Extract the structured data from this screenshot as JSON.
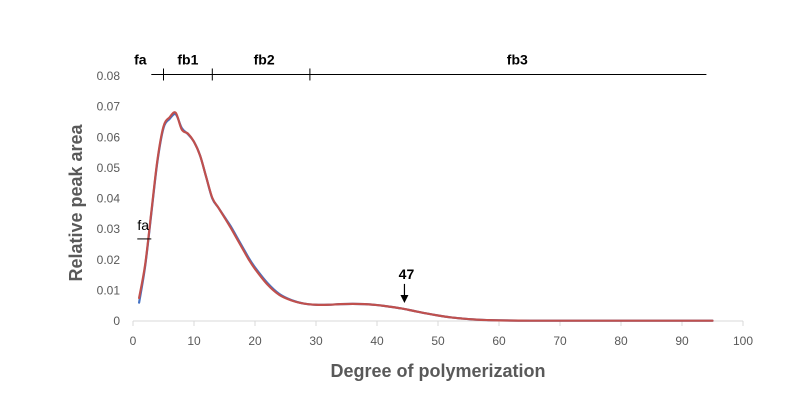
{
  "chart_data": {
    "type": "line",
    "title": "",
    "xlabel": "Degree of polymerization",
    "ylabel": "Relative peak area",
    "xlim": [
      0,
      100
    ],
    "ylim": [
      0,
      0.08
    ],
    "grid": false,
    "x_ticks": [
      0,
      10,
      20,
      30,
      40,
      50,
      60,
      70,
      80,
      90,
      100
    ],
    "y_ticks": [
      0,
      0.01,
      0.02,
      0.03,
      0.04,
      0.05,
      0.06,
      0.07,
      0.08
    ],
    "x_tick_labels": [
      "0",
      "10",
      "20",
      "30",
      "40",
      "50",
      "60",
      "70",
      "80",
      "90",
      "100"
    ],
    "y_tick_labels": [
      "0",
      "0.01",
      "0.02",
      "0.03",
      "0.04",
      "0.05",
      "0.06",
      "0.07",
      "0.08"
    ],
    "series": [
      {
        "color": "#4472C4",
        "x": [
          1,
          2,
          3,
          4,
          5,
          6,
          7,
          8,
          9,
          10,
          11,
          12,
          13,
          14,
          15,
          16,
          17,
          18,
          19,
          20,
          22,
          24,
          26,
          28,
          30,
          32,
          34,
          36,
          38,
          40,
          42,
          44,
          46,
          48,
          50,
          52,
          54,
          56,
          58,
          60,
          65,
          70,
          75,
          80,
          85,
          90,
          95
        ],
        "y": [
          0.006,
          0.018,
          0.035,
          0.052,
          0.063,
          0.066,
          0.0675,
          0.063,
          0.061,
          0.0585,
          0.054,
          0.047,
          0.04,
          0.037,
          0.034,
          0.031,
          0.0275,
          0.024,
          0.0205,
          0.0175,
          0.0125,
          0.0088,
          0.0068,
          0.0057,
          0.0053,
          0.0053,
          0.0055,
          0.0056,
          0.0055,
          0.0052,
          0.0047,
          0.0041,
          0.0033,
          0.0025,
          0.0018,
          0.0012,
          0.0008,
          0.0005,
          0.0003,
          0.0002,
          0.0001,
          0.0001,
          0.0001,
          0.0001,
          0.0001,
          0.0001,
          0.0001
        ]
      },
      {
        "color": "#C0504D",
        "x": [
          1,
          2,
          3,
          4,
          5,
          6,
          7,
          8,
          9,
          10,
          11,
          12,
          13,
          14,
          15,
          16,
          17,
          18,
          19,
          20,
          22,
          24,
          26,
          28,
          30,
          32,
          34,
          36,
          38,
          40,
          42,
          44,
          46,
          48,
          50,
          52,
          54,
          56,
          58,
          60,
          65,
          70,
          75,
          80,
          85,
          90,
          95
        ],
        "y": [
          0.0075,
          0.0185,
          0.0355,
          0.0525,
          0.0635,
          0.0665,
          0.068,
          0.0625,
          0.0612,
          0.0585,
          0.054,
          0.047,
          0.0402,
          0.037,
          0.0338,
          0.0305,
          0.027,
          0.0235,
          0.02,
          0.017,
          0.012,
          0.0085,
          0.0067,
          0.0057,
          0.0053,
          0.0053,
          0.0055,
          0.0056,
          0.0055,
          0.0052,
          0.0047,
          0.0041,
          0.0033,
          0.0025,
          0.0018,
          0.0012,
          0.0008,
          0.0005,
          0.0003,
          0.0002,
          0.0001,
          0.0001,
          0.0001,
          0.0001,
          0.0001,
          0.0001,
          0.0001
        ]
      }
    ],
    "annotations": {
      "fraction_bar": {
        "y": 0.0805,
        "x_start": 3,
        "x_end": 94,
        "dividers": [
          5,
          13,
          29
        ],
        "labels": [
          {
            "text": "fa",
            "x": 1.2
          },
          {
            "text": "fb1",
            "x": 9
          },
          {
            "text": "fb2",
            "x": 21.5
          },
          {
            "text": "fb3",
            "x": 63
          }
        ]
      },
      "fa_marker": {
        "text": "fa",
        "x_start": 0.7,
        "x_end": 3,
        "y": 0.0268
      },
      "arrow": {
        "text": "47",
        "x": 44.5,
        "y_from": 0.0095,
        "y_to": 0.0072
      }
    }
  }
}
